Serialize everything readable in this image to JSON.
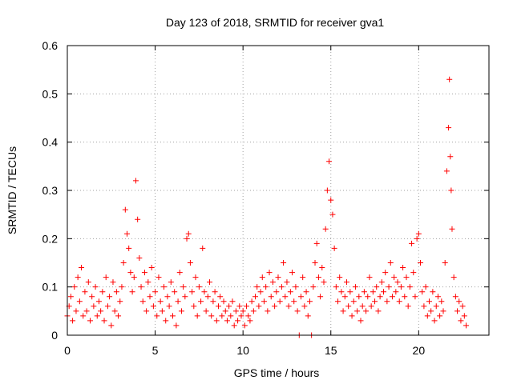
{
  "chart_data": {
    "type": "scatter",
    "title": "Day 123 of 2018, SRMTID for receiver gva1",
    "xlabel": "GPS time / hours",
    "ylabel": "SRMTID / TECUs",
    "xlim": [
      0,
      24
    ],
    "ylim": [
      0,
      0.6
    ],
    "xticks": [
      0,
      5,
      10,
      15,
      20
    ],
    "xtick_labels": [
      "0",
      "5",
      "10",
      "15",
      "20"
    ],
    "yticks": [
      0,
      0.1,
      0.2,
      0.3,
      0.4,
      0.5,
      0.6
    ],
    "ytick_labels": [
      "0",
      "0.1",
      "0.2",
      "0.3",
      "0.4",
      "0.5",
      "0.6"
    ],
    "grid": true,
    "marker": "+",
    "color": "#ff0000",
    "series": [
      {
        "name": "gva1",
        "points": [
          [
            0.0,
            0.04
          ],
          [
            0.1,
            0.06
          ],
          [
            0.2,
            0.08
          ],
          [
            0.3,
            0.03
          ],
          [
            0.4,
            0.1
          ],
          [
            0.5,
            0.05
          ],
          [
            0.6,
            0.12
          ],
          [
            0.7,
            0.07
          ],
          [
            0.8,
            0.14
          ],
          [
            0.9,
            0.04
          ],
          [
            1.0,
            0.09
          ],
          [
            1.1,
            0.05
          ],
          [
            1.2,
            0.11
          ],
          [
            1.3,
            0.03
          ],
          [
            1.4,
            0.08
          ],
          [
            1.5,
            0.06
          ],
          [
            1.6,
            0.1
          ],
          [
            1.7,
            0.04
          ],
          [
            1.8,
            0.07
          ],
          [
            1.9,
            0.05
          ],
          [
            2.0,
            0.09
          ],
          [
            2.1,
            0.03
          ],
          [
            2.2,
            0.12
          ],
          [
            2.3,
            0.06
          ],
          [
            2.4,
            0.08
          ],
          [
            2.5,
            0.02
          ],
          [
            2.6,
            0.11
          ],
          [
            2.7,
            0.05
          ],
          [
            2.8,
            0.09
          ],
          [
            2.9,
            0.04
          ],
          [
            3.0,
            0.07
          ],
          [
            3.1,
            0.1
          ],
          [
            3.2,
            0.15
          ],
          [
            3.3,
            0.26
          ],
          [
            3.4,
            0.21
          ],
          [
            3.5,
            0.18
          ],
          [
            3.6,
            0.13
          ],
          [
            3.7,
            0.09
          ],
          [
            3.8,
            0.12
          ],
          [
            3.9,
            0.32
          ],
          [
            4.0,
            0.24
          ],
          [
            4.1,
            0.16
          ],
          [
            4.2,
            0.1
          ],
          [
            4.3,
            0.07
          ],
          [
            4.4,
            0.13
          ],
          [
            4.5,
            0.05
          ],
          [
            4.6,
            0.11
          ],
          [
            4.7,
            0.08
          ],
          [
            4.8,
            0.14
          ],
          [
            4.9,
            0.06
          ],
          [
            5.0,
            0.09
          ],
          [
            5.1,
            0.04
          ],
          [
            5.2,
            0.12
          ],
          [
            5.3,
            0.07
          ],
          [
            5.4,
            0.05
          ],
          [
            5.5,
            0.1
          ],
          [
            5.6,
            0.03
          ],
          [
            5.7,
            0.08
          ],
          [
            5.8,
            0.06
          ],
          [
            5.9,
            0.11
          ],
          [
            6.0,
            0.04
          ],
          [
            6.1,
            0.09
          ],
          [
            6.2,
            0.02
          ],
          [
            6.3,
            0.07
          ],
          [
            6.4,
            0.13
          ],
          [
            6.5,
            0.05
          ],
          [
            6.6,
            0.1
          ],
          [
            6.7,
            0.08
          ],
          [
            6.8,
            0.2
          ],
          [
            6.9,
            0.21
          ],
          [
            7.0,
            0.15
          ],
          [
            7.1,
            0.09
          ],
          [
            7.2,
            0.06
          ],
          [
            7.3,
            0.12
          ],
          [
            7.4,
            0.04
          ],
          [
            7.5,
            0.1
          ],
          [
            7.6,
            0.07
          ],
          [
            7.7,
            0.18
          ],
          [
            7.8,
            0.09
          ],
          [
            7.9,
            0.05
          ],
          [
            8.0,
            0.08
          ],
          [
            8.1,
            0.11
          ],
          [
            8.2,
            0.04
          ],
          [
            8.3,
            0.07
          ],
          [
            8.4,
            0.09
          ],
          [
            8.5,
            0.03
          ],
          [
            8.6,
            0.06
          ],
          [
            8.7,
            0.08
          ],
          [
            8.8,
            0.04
          ],
          [
            8.9,
            0.07
          ],
          [
            9.0,
            0.05
          ],
          [
            9.1,
            0.03
          ],
          [
            9.2,
            0.06
          ],
          [
            9.3,
            0.04
          ],
          [
            9.4,
            0.07
          ],
          [
            9.5,
            0.02
          ],
          [
            9.6,
            0.05
          ],
          [
            9.7,
            0.03
          ],
          [
            9.8,
            0.06
          ],
          [
            9.9,
            0.04
          ],
          [
            10.0,
            0.05
          ],
          [
            10.1,
            0.02
          ],
          [
            10.2,
            0.06
          ],
          [
            10.3,
            0.04
          ],
          [
            10.4,
            0.03
          ],
          [
            10.5,
            0.07
          ],
          [
            10.6,
            0.05
          ],
          [
            10.7,
            0.08
          ],
          [
            10.8,
            0.1
          ],
          [
            10.9,
            0.06
          ],
          [
            11.0,
            0.09
          ],
          [
            11.1,
            0.12
          ],
          [
            11.2,
            0.07
          ],
          [
            11.3,
            0.1
          ],
          [
            11.4,
            0.05
          ],
          [
            11.5,
            0.13
          ],
          [
            11.6,
            0.08
          ],
          [
            11.7,
            0.11
          ],
          [
            11.8,
            0.06
          ],
          [
            11.9,
            0.09
          ],
          [
            12.0,
            0.12
          ],
          [
            12.1,
            0.07
          ],
          [
            12.2,
            0.1
          ],
          [
            12.3,
            0.15
          ],
          [
            12.4,
            0.08
          ],
          [
            12.5,
            0.11
          ],
          [
            12.6,
            0.06
          ],
          [
            12.7,
            0.09
          ],
          [
            12.8,
            0.13
          ],
          [
            12.9,
            0.07
          ],
          [
            13.0,
            0.1
          ],
          [
            13.1,
            0.05
          ],
          [
            13.2,
            0.0
          ],
          [
            13.3,
            0.08
          ],
          [
            13.4,
            0.12
          ],
          [
            13.5,
            0.06
          ],
          [
            13.6,
            0.09
          ],
          [
            13.7,
            0.04
          ],
          [
            13.8,
            0.07
          ],
          [
            13.9,
            0.0
          ],
          [
            14.0,
            0.1
          ],
          [
            14.1,
            0.15
          ],
          [
            14.2,
            0.19
          ],
          [
            14.3,
            0.12
          ],
          [
            14.4,
            0.08
          ],
          [
            14.5,
            0.14
          ],
          [
            14.6,
            0.11
          ],
          [
            14.7,
            0.22
          ],
          [
            14.8,
            0.3
          ],
          [
            14.9,
            0.36
          ],
          [
            15.0,
            0.28
          ],
          [
            15.1,
            0.25
          ],
          [
            15.2,
            0.18
          ],
          [
            15.3,
            0.1
          ],
          [
            15.4,
            0.07
          ],
          [
            15.5,
            0.12
          ],
          [
            15.6,
            0.09
          ],
          [
            15.7,
            0.05
          ],
          [
            15.8,
            0.08
          ],
          [
            15.9,
            0.11
          ],
          [
            16.0,
            0.06
          ],
          [
            16.1,
            0.09
          ],
          [
            16.2,
            0.04
          ],
          [
            16.3,
            0.07
          ],
          [
            16.4,
            0.1
          ],
          [
            16.5,
            0.05
          ],
          [
            16.6,
            0.08
          ],
          [
            16.7,
            0.03
          ],
          [
            16.8,
            0.06
          ],
          [
            16.9,
            0.09
          ],
          [
            17.0,
            0.05
          ],
          [
            17.1,
            0.08
          ],
          [
            17.2,
            0.12
          ],
          [
            17.3,
            0.06
          ],
          [
            17.4,
            0.09
          ],
          [
            17.5,
            0.07
          ],
          [
            17.6,
            0.1
          ],
          [
            17.7,
            0.05
          ],
          [
            17.8,
            0.08
          ],
          [
            17.9,
            0.11
          ],
          [
            18.0,
            0.09
          ],
          [
            18.1,
            0.13
          ],
          [
            18.2,
            0.07
          ],
          [
            18.3,
            0.1
          ],
          [
            18.4,
            0.15
          ],
          [
            18.5,
            0.08
          ],
          [
            18.6,
            0.12
          ],
          [
            18.7,
            0.09
          ],
          [
            18.8,
            0.11
          ],
          [
            18.9,
            0.07
          ],
          [
            19.0,
            0.1
          ],
          [
            19.1,
            0.14
          ],
          [
            19.2,
            0.08
          ],
          [
            19.3,
            0.12
          ],
          [
            19.4,
            0.06
          ],
          [
            19.5,
            0.1
          ],
          [
            19.6,
            0.19
          ],
          [
            19.7,
            0.13
          ],
          [
            19.8,
            0.08
          ],
          [
            19.9,
            0.2
          ],
          [
            20.0,
            0.21
          ],
          [
            20.1,
            0.15
          ],
          [
            20.2,
            0.09
          ],
          [
            20.3,
            0.06
          ],
          [
            20.4,
            0.1
          ],
          [
            20.5,
            0.04
          ],
          [
            20.6,
            0.07
          ],
          [
            20.7,
            0.05
          ],
          [
            20.8,
            0.09
          ],
          [
            20.9,
            0.03
          ],
          [
            21.0,
            0.06
          ],
          [
            21.1,
            0.08
          ],
          [
            21.2,
            0.04
          ],
          [
            21.3,
            0.07
          ],
          [
            21.4,
            0.05
          ],
          [
            21.5,
            0.15
          ],
          [
            21.6,
            0.34
          ],
          [
            21.7,
            0.43
          ],
          [
            21.75,
            0.53
          ],
          [
            21.8,
            0.37
          ],
          [
            21.85,
            0.3
          ],
          [
            21.9,
            0.22
          ],
          [
            22.0,
            0.12
          ],
          [
            22.1,
            0.08
          ],
          [
            22.2,
            0.05
          ],
          [
            22.3,
            0.07
          ],
          [
            22.4,
            0.03
          ],
          [
            22.5,
            0.06
          ],
          [
            22.6,
            0.04
          ],
          [
            22.7,
            0.02
          ]
        ]
      }
    ]
  }
}
